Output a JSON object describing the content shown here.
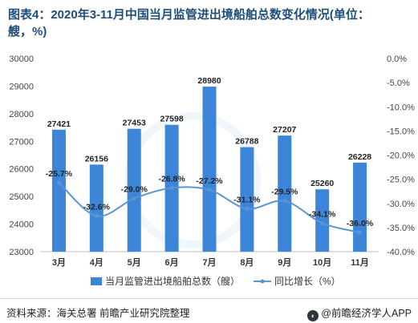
{
  "title": "图表4：2020年3-11月中国当月监管进出境船舶总数变化情况(单位：艘，%)",
  "source": "资料来源：海关总署 前瞻产业研究院整理",
  "brand": "@前瞻经济学人APP",
  "colors": {
    "bar": "#3d85d8",
    "line": "#5b95d6",
    "title": "#1f4e79"
  },
  "chart_data": {
    "type": "bar",
    "categories": [
      "3月",
      "4月",
      "5月",
      "6月",
      "7月",
      "8月",
      "9月",
      "10月",
      "11月"
    ],
    "series": [
      {
        "name": "当月监管进出境船舶总数（艘）",
        "type": "bar",
        "axis": "left",
        "values": [
          27421,
          26156,
          27453,
          27598,
          28980,
          26788,
          27207,
          25260,
          26228
        ],
        "labels": [
          "27421",
          "26156",
          "27453",
          "27598",
          "28980",
          "26788",
          "27207",
          "25260",
          "26228"
        ]
      },
      {
        "name": "同比增长（%）",
        "type": "line",
        "axis": "right",
        "values": [
          -25.7,
          -32.6,
          -29.0,
          -26.8,
          -27.2,
          -31.1,
          -29.5,
          -34.1,
          -36.0
        ],
        "labels": [
          "-25.7%",
          "-32.6%",
          "-29.0%",
          "-26.8%",
          "-27.2%",
          "-31.1%",
          "-29.5%",
          "-34.1%",
          "-36.0%"
        ]
      }
    ],
    "y_left": {
      "min": 23000,
      "max": 30000,
      "ticks": [
        "23000",
        "24000",
        "25000",
        "26000",
        "27000",
        "28000",
        "29000",
        "30000"
      ]
    },
    "y_right": {
      "min": -40,
      "max": 0,
      "ticks": [
        "0.0%",
        "-5.0%",
        "-10.0%",
        "-15.0%",
        "-20.0%",
        "-25.0%",
        "-30.0%",
        "-35.0%",
        "-40.0%"
      ]
    },
    "legend_position": "bottom",
    "grid": false
  }
}
